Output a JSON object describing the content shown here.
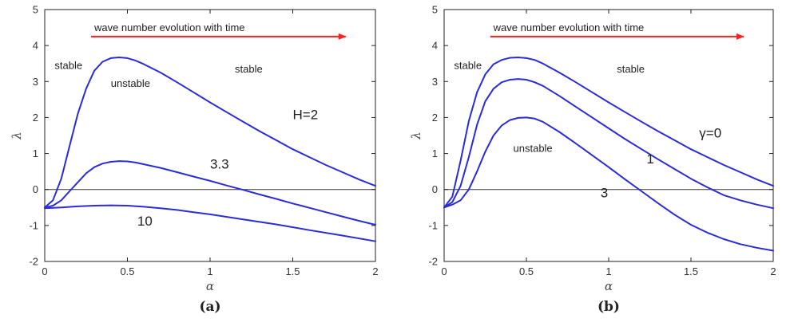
{
  "chart_data": [
    {
      "type": "line",
      "caption": "(a)",
      "xlabel": "α",
      "ylabel": "λ",
      "xlim": [
        0,
        2
      ],
      "ylim": [
        -2,
        5
      ],
      "xticks": [
        "0",
        "0.5",
        "1",
        "1.5",
        "2"
      ],
      "yticks": [
        "-2",
        "-1",
        "0",
        "1",
        "2",
        "3",
        "4",
        "5"
      ],
      "grid": false,
      "zero_line": true,
      "arrow": {
        "text": "wave number evolution with time",
        "x0": 0.28,
        "x1": 1.82,
        "y": 4.25,
        "color": "#ff2020"
      },
      "line_color": "#2b2bdb",
      "series": [
        {
          "label": "H=2",
          "x": [
            0,
            0.05,
            0.1,
            0.15,
            0.2,
            0.25,
            0.3,
            0.35,
            0.4,
            0.45,
            0.5,
            0.55,
            0.6,
            0.7,
            0.8,
            0.9,
            1.0,
            1.1,
            1.2,
            1.3,
            1.4,
            1.5,
            1.6,
            1.7,
            1.8,
            1.9,
            2.0
          ],
          "y": [
            -0.5,
            -0.3,
            0.3,
            1.2,
            2.1,
            2.8,
            3.3,
            3.55,
            3.65,
            3.67,
            3.65,
            3.58,
            3.48,
            3.25,
            2.98,
            2.7,
            2.42,
            2.15,
            1.88,
            1.62,
            1.37,
            1.12,
            0.9,
            0.68,
            0.48,
            0.28,
            0.1
          ]
        },
        {
          "label": "3.3",
          "x": [
            0,
            0.05,
            0.1,
            0.15,
            0.2,
            0.25,
            0.3,
            0.35,
            0.4,
            0.45,
            0.5,
            0.55,
            0.6,
            0.7,
            0.8,
            0.9,
            1.0,
            1.1,
            1.2,
            1.3,
            1.4,
            1.5,
            1.6,
            1.7,
            1.8,
            1.9,
            2.0
          ],
          "y": [
            -0.5,
            -0.45,
            -0.3,
            -0.05,
            0.2,
            0.45,
            0.62,
            0.72,
            0.77,
            0.79,
            0.78,
            0.75,
            0.7,
            0.6,
            0.48,
            0.36,
            0.24,
            0.11,
            -0.01,
            -0.14,
            -0.26,
            -0.39,
            -0.51,
            -0.63,
            -0.75,
            -0.87,
            -0.98
          ]
        },
        {
          "label": "10",
          "x": [
            0,
            0.1,
            0.2,
            0.3,
            0.4,
            0.5,
            0.6,
            0.7,
            0.8,
            0.9,
            1.0,
            1.2,
            1.4,
            1.6,
            1.8,
            2.0
          ],
          "y": [
            -0.52,
            -0.5,
            -0.47,
            -0.45,
            -0.44,
            -0.45,
            -0.48,
            -0.52,
            -0.57,
            -0.63,
            -0.69,
            -0.83,
            -0.97,
            -1.13,
            -1.28,
            -1.44
          ]
        }
      ],
      "annotations": [
        {
          "text": "stable",
          "x": 0.06,
          "y": 3.35,
          "size": "normal"
        },
        {
          "text": "unstable",
          "x": 0.4,
          "y": 2.85,
          "size": "normal"
        },
        {
          "text": "stable",
          "x": 1.15,
          "y": 3.25,
          "size": "normal"
        },
        {
          "text": "H=2",
          "x": 1.5,
          "y": 1.95,
          "size": "big"
        },
        {
          "text": "3.3",
          "x": 1.0,
          "y": 0.58,
          "size": "big"
        },
        {
          "text": "10",
          "x": 0.56,
          "y": -1.0,
          "size": "big"
        }
      ]
    },
    {
      "type": "line",
      "caption": "(b)",
      "xlabel": "α",
      "ylabel": "λ",
      "xlim": [
        0,
        2
      ],
      "ylim": [
        -2,
        5
      ],
      "xticks": [
        "0",
        "0.5",
        "1",
        "1.5",
        "2"
      ],
      "yticks": [
        "-2",
        "-1",
        "0",
        "1",
        "2",
        "3",
        "4",
        "5"
      ],
      "grid": false,
      "zero_line": true,
      "arrow": {
        "text": "wave number evolution with time",
        "x0": 0.28,
        "x1": 1.82,
        "y": 4.25,
        "color": "#ff2020"
      },
      "line_color": "#2b2bdb",
      "series": [
        {
          "label": "γ=0",
          "x": [
            0,
            0.05,
            0.1,
            0.15,
            0.2,
            0.25,
            0.3,
            0.35,
            0.4,
            0.45,
            0.5,
            0.55,
            0.6,
            0.7,
            0.8,
            0.9,
            1.0,
            1.1,
            1.2,
            1.3,
            1.4,
            1.5,
            1.6,
            1.7,
            1.8,
            1.9,
            2.0
          ],
          "y": [
            -0.5,
            -0.2,
            0.8,
            1.9,
            2.7,
            3.2,
            3.48,
            3.6,
            3.66,
            3.67,
            3.65,
            3.6,
            3.5,
            3.25,
            2.98,
            2.7,
            2.42,
            2.15,
            1.88,
            1.62,
            1.37,
            1.12,
            0.9,
            0.68,
            0.48,
            0.28,
            0.1
          ]
        },
        {
          "label": "1",
          "x": [
            0,
            0.05,
            0.1,
            0.15,
            0.2,
            0.25,
            0.3,
            0.35,
            0.4,
            0.45,
            0.5,
            0.55,
            0.6,
            0.7,
            0.8,
            0.9,
            1.0,
            1.1,
            1.2,
            1.3,
            1.4,
            1.5,
            1.6,
            1.7,
            1.8,
            1.9,
            2.0
          ],
          "y": [
            -0.5,
            -0.35,
            0.1,
            0.9,
            1.8,
            2.45,
            2.8,
            2.98,
            3.05,
            3.07,
            3.05,
            2.98,
            2.88,
            2.6,
            2.3,
            2.0,
            1.7,
            1.4,
            1.12,
            0.84,
            0.57,
            0.3,
            0.06,
            -0.16,
            -0.3,
            -0.42,
            -0.52
          ]
        },
        {
          "label": "3",
          "x": [
            0,
            0.05,
            0.1,
            0.15,
            0.2,
            0.25,
            0.3,
            0.35,
            0.4,
            0.45,
            0.5,
            0.55,
            0.6,
            0.7,
            0.8,
            0.9,
            1.0,
            1.1,
            1.2,
            1.3,
            1.4,
            1.5,
            1.6,
            1.7,
            1.8,
            1.9,
            2.0
          ],
          "y": [
            -0.5,
            -0.42,
            -0.3,
            0.0,
            0.5,
            1.05,
            1.5,
            1.78,
            1.93,
            1.99,
            2.0,
            1.97,
            1.88,
            1.6,
            1.28,
            0.95,
            0.62,
            0.28,
            -0.05,
            -0.38,
            -0.7,
            -0.98,
            -1.2,
            -1.38,
            -1.52,
            -1.62,
            -1.7
          ]
        }
      ],
      "annotations": [
        {
          "text": "stable",
          "x": 0.06,
          "y": 3.35,
          "size": "normal"
        },
        {
          "text": "stable",
          "x": 1.05,
          "y": 3.25,
          "size": "normal"
        },
        {
          "text": "unstable",
          "x": 0.42,
          "y": 1.05,
          "size": "normal"
        },
        {
          "text": "γ=0",
          "x": 1.55,
          "y": 1.45,
          "size": "big"
        },
        {
          "text": "1",
          "x": 1.23,
          "y": 0.72,
          "size": "big"
        },
        {
          "text": "3",
          "x": 0.95,
          "y": -0.22,
          "size": "big"
        }
      ]
    }
  ]
}
